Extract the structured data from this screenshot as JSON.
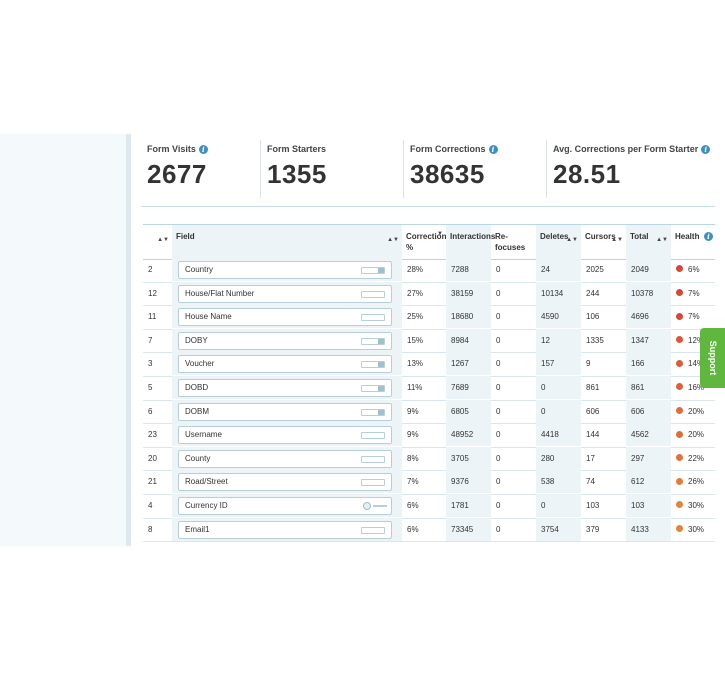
{
  "stats": [
    {
      "label": "Form Visits",
      "value": "2677",
      "info": true
    },
    {
      "label": "Form Starters",
      "value": "1355",
      "info": false
    },
    {
      "label": "Form Corrections",
      "value": "38635",
      "info": true
    },
    {
      "label": "Avg. Corrections per Form Starter",
      "value": "28.51",
      "info": true
    }
  ],
  "table": {
    "headers": {
      "num": "",
      "field": "Field",
      "correction": "Correction %",
      "interactions": "Interactions",
      "refocuses": "Re-focuses",
      "deletes": "Deletes",
      "cursors": "Cursors",
      "total": "Total",
      "health": "Health"
    },
    "rows": [
      {
        "num": "2",
        "field": "Country",
        "control": "select",
        "correction": "28%",
        "interactions": "7288",
        "refocuses": "0",
        "deletes": "24",
        "cursors": "2025",
        "total": "2049",
        "health": "6%",
        "health_color": "#d9453b"
      },
      {
        "num": "12",
        "field": "House/Flat Number",
        "control": "text",
        "correction": "27%",
        "interactions": "38159",
        "refocuses": "0",
        "deletes": "10134",
        "cursors": "244",
        "total": "10378",
        "health": "7%",
        "health_color": "#d9453b"
      },
      {
        "num": "11",
        "field": "House Name",
        "control": "text",
        "correction": "25%",
        "interactions": "18680",
        "refocuses": "0",
        "deletes": "4590",
        "cursors": "106",
        "total": "4696",
        "health": "7%",
        "health_color": "#d9453b"
      },
      {
        "num": "7",
        "field": "DOBY",
        "control": "select",
        "correction": "15%",
        "interactions": "8984",
        "refocuses": "0",
        "deletes": "12",
        "cursors": "1335",
        "total": "1347",
        "health": "12%",
        "health_color": "#d9553b"
      },
      {
        "num": "3",
        "field": "Voucher",
        "control": "select",
        "correction": "13%",
        "interactions": "1267",
        "refocuses": "0",
        "deletes": "157",
        "cursors": "9",
        "total": "166",
        "health": "14%",
        "health_color": "#db5b3a"
      },
      {
        "num": "5",
        "field": "DOBD",
        "control": "select",
        "correction": "11%",
        "interactions": "7689",
        "refocuses": "0",
        "deletes": "0",
        "cursors": "861",
        "total": "861",
        "health": "16%",
        "health_color": "#dc6139"
      },
      {
        "num": "6",
        "field": "DOBM",
        "control": "select",
        "correction": "9%",
        "interactions": "6805",
        "refocuses": "0",
        "deletes": "0",
        "cursors": "606",
        "total": "606",
        "health": "20%",
        "health_color": "#df6d38"
      },
      {
        "num": "23",
        "field": "Username",
        "control": "text",
        "correction": "9%",
        "interactions": "48952",
        "refocuses": "0",
        "deletes": "4418",
        "cursors": "144",
        "total": "4562",
        "health": "20%",
        "health_color": "#df6d38"
      },
      {
        "num": "20",
        "field": "County",
        "control": "text",
        "correction": "8%",
        "interactions": "3705",
        "refocuses": "0",
        "deletes": "280",
        "cursors": "17",
        "total": "297",
        "health": "22%",
        "health_color": "#e07237"
      },
      {
        "num": "21",
        "field": "Road/Street",
        "control": "text",
        "correction": "7%",
        "interactions": "9376",
        "refocuses": "0",
        "deletes": "538",
        "cursors": "74",
        "total": "612",
        "health": "26%",
        "health_color": "#e27c36"
      },
      {
        "num": "4",
        "field": "Currency ID",
        "control": "gear",
        "correction": "6%",
        "interactions": "1781",
        "refocuses": "0",
        "deletes": "0",
        "cursors": "103",
        "total": "103",
        "health": "30%",
        "health_color": "#e48535"
      },
      {
        "num": "8",
        "field": "Email1",
        "control": "text",
        "correction": "6%",
        "interactions": "73345",
        "refocuses": "0",
        "deletes": "3754",
        "cursors": "379",
        "total": "4133",
        "health": "30%",
        "health_color": "#e48535"
      }
    ]
  },
  "support": {
    "label": "Support"
  },
  "colors": {
    "accent": "#3d8fc4",
    "support_green": "#5fb73e",
    "column_shade": "#ecf4f7"
  }
}
